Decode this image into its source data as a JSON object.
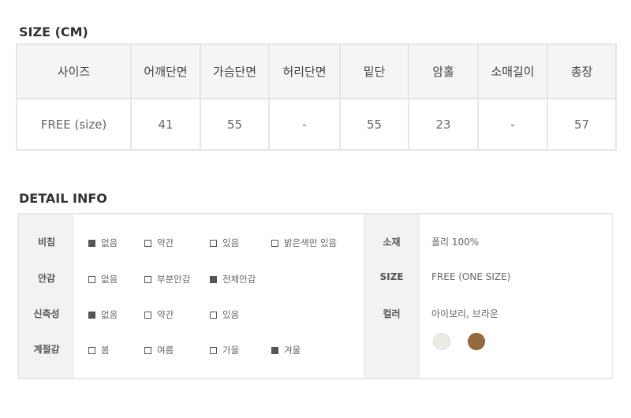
{
  "size_section": {
    "title": "SIZE (CM)",
    "headers": [
      "사이즈",
      "어깨단면",
      "가슴단면",
      "허리단면",
      "밑단",
      "암홀",
      "소매길이",
      "총장"
    ],
    "row": [
      "FREE (size)",
      "41",
      "55",
      "-",
      "55",
      "23",
      "-",
      "57"
    ]
  },
  "detail_section": {
    "title": "DETAIL INFO",
    "attributes": [
      {
        "label": "비침",
        "options": [
          {
            "text": "없음",
            "checked": true
          },
          {
            "text": "약간",
            "checked": false
          },
          {
            "text": "있음",
            "checked": false
          },
          {
            "text": "밝은색만 있음",
            "checked": false
          }
        ]
      },
      {
        "label": "안감",
        "options": [
          {
            "text": "없음",
            "checked": false
          },
          {
            "text": "부분안감",
            "checked": false
          },
          {
            "text": "전체안감",
            "checked": true
          }
        ]
      },
      {
        "label": "신축성",
        "options": [
          {
            "text": "없음",
            "checked": true
          },
          {
            "text": "약간",
            "checked": false
          },
          {
            "text": "있음",
            "checked": false
          }
        ]
      },
      {
        "label": "계절감",
        "options": [
          {
            "text": "봄",
            "checked": false
          },
          {
            "text": "여름",
            "checked": false
          },
          {
            "text": "가을",
            "checked": false
          },
          {
            "text": "겨울",
            "checked": true
          }
        ]
      }
    ],
    "info": [
      {
        "label": "소재",
        "value": "폴리 100%"
      },
      {
        "label": "SIZE",
        "value": "FREE (ONE SIZE)"
      },
      {
        "label": "컬러",
        "value": "아이보리, 브라운"
      }
    ],
    "swatches": [
      {
        "name": "아이보리",
        "color": "#ecebe3"
      },
      {
        "name": "브라운",
        "color": "#946a3e"
      }
    ]
  }
}
